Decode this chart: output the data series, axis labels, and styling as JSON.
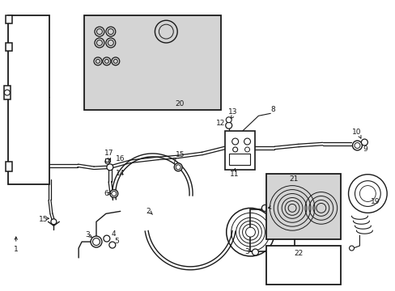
{
  "bg_color": "#ffffff",
  "line_color": "#1a1a1a",
  "gray_fill": "#d4d4d4",
  "figsize": [
    4.89,
    3.6
  ],
  "dpi": 100
}
